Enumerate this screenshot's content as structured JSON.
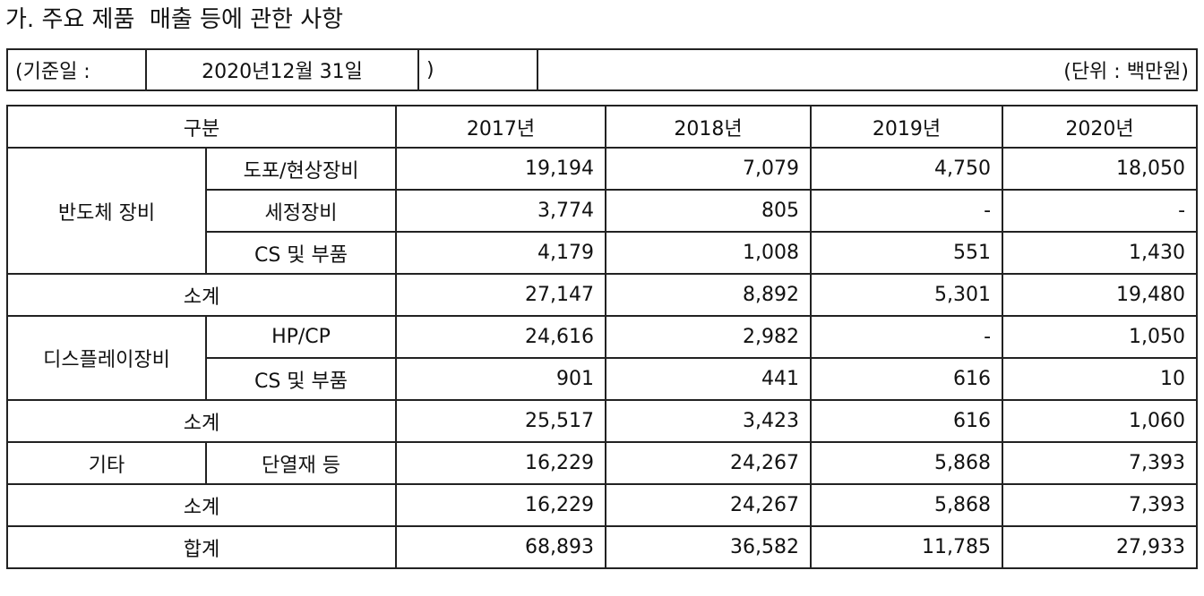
{
  "title": "가. 주요 제품  매출 등에 관한 사항",
  "info": {
    "date_label": "(기준일 :",
    "date_value": "2020년12월 31일",
    "close_paren": ")",
    "unit": "(단위 : 백만원)"
  },
  "table": {
    "header": {
      "category": "구분",
      "years": [
        "2017년",
        "2018년",
        "2019년",
        "2020년"
      ]
    },
    "semiconductor": {
      "label": "반도체 장비",
      "rows": [
        {
          "item": "도포/현상장비",
          "values": [
            "19,194",
            "7,079",
            "4,750",
            "18,050"
          ]
        },
        {
          "item": "세정장비",
          "values": [
            "3,774",
            "805",
            "-",
            "-"
          ]
        },
        {
          "item": "CS 및 부품",
          "values": [
            "4,179",
            "1,008",
            "551",
            "1,430"
          ]
        }
      ],
      "subtotal": {
        "label": "소계",
        "values": [
          "27,147",
          "8,892",
          "5,301",
          "19,480"
        ]
      }
    },
    "display": {
      "label": "디스플레이장비",
      "rows": [
        {
          "item": "HP/CP",
          "values": [
            "24,616",
            "2,982",
            "-",
            "1,050"
          ]
        },
        {
          "item": "CS 및 부품",
          "values": [
            "901",
            "441",
            "616",
            "10"
          ]
        }
      ],
      "subtotal": {
        "label": "소계",
        "values": [
          "25,517",
          "3,423",
          "616",
          "1,060"
        ]
      }
    },
    "other": {
      "label": "기타",
      "rows": [
        {
          "item": "단열재 등",
          "values": [
            "16,229",
            "24,267",
            "5,868",
            "7,393"
          ]
        }
      ],
      "subtotal": {
        "label": "소계",
        "values": [
          "16,229",
          "24,267",
          "5,868",
          "7,393"
        ]
      }
    },
    "total": {
      "label": "합계",
      "values": [
        "68,893",
        "36,582",
        "11,785",
        "27,933"
      ]
    }
  }
}
